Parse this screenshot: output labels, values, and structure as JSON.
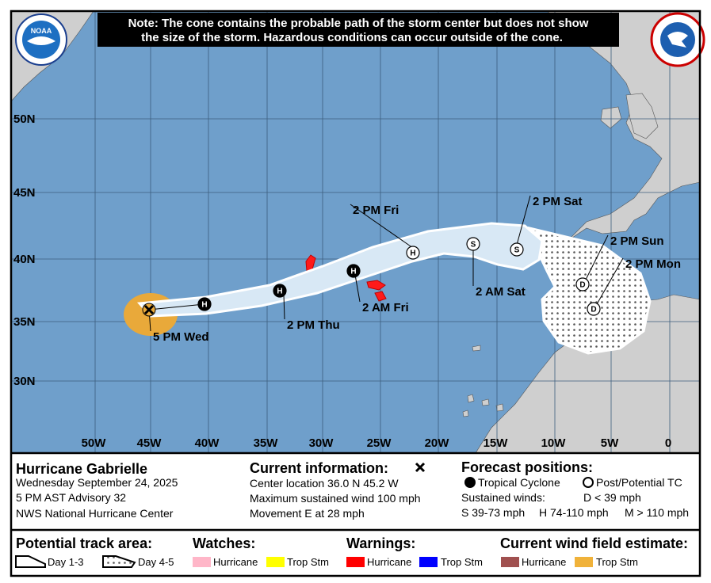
{
  "note": {
    "lines": [
      "Note: The cone contains the probable path of the storm center but does not show",
      "the size of the storm. Hazardous conditions can occur outside of the cone."
    ]
  },
  "logo": "NOAA",
  "map": {
    "lat_labels": [
      "50N",
      "45N",
      "40N",
      "35N",
      "30N"
    ],
    "lon_labels": [
      "50W",
      "45W",
      "40W",
      "35W",
      "30W",
      "25W",
      "20W",
      "15W",
      "10W",
      "5W",
      "0"
    ],
    "markers": [
      "H",
      "H",
      "H",
      "H",
      "S",
      "S",
      "D",
      "D"
    ],
    "times": [
      "5 PM Wed",
      "2 PM Thu",
      "2 AM Fri",
      "2 PM Fri",
      "2 AM Sat",
      "2 PM Sat",
      "2 PM Sun",
      "2 PM Mon"
    ]
  },
  "panel": {
    "storm": {
      "name": "Hurricane Gabrielle",
      "date": "Wednesday September 24, 2025",
      "advisory": "5 PM AST Advisory 32",
      "office": "NWS National Hurricane Center"
    },
    "current": {
      "title": "Current information:",
      "lines": [
        "Center location 36.0 N 45.2 W",
        "Maximum sustained wind 100 mph",
        "Movement E at 28 mph"
      ]
    },
    "forecast": {
      "title": "Forecast positions:",
      "tropical": "Tropical Cyclone",
      "post": "Post/Potential TC",
      "winds": "Sustained winds:",
      "d": "D < 39 mph",
      "s": "S 39-73 mph",
      "h": "H 74-110 mph",
      "m": "M > 110 mph"
    }
  },
  "legend": {
    "track": {
      "title": "Potential track area:",
      "day13": "Day 1-3",
      "day45": "Day 4-5"
    },
    "watches": {
      "title": "Watches:",
      "hurricane": "Hurricane",
      "trop": "Trop Stm"
    },
    "warnings": {
      "title": "Warnings:",
      "hurricane": "Hurricane",
      "trop": "Trop Stm"
    },
    "wind": {
      "title": "Current wind field estimate:",
      "hurricane": "Hurricane",
      "trop": "Trop Stm"
    }
  }
}
